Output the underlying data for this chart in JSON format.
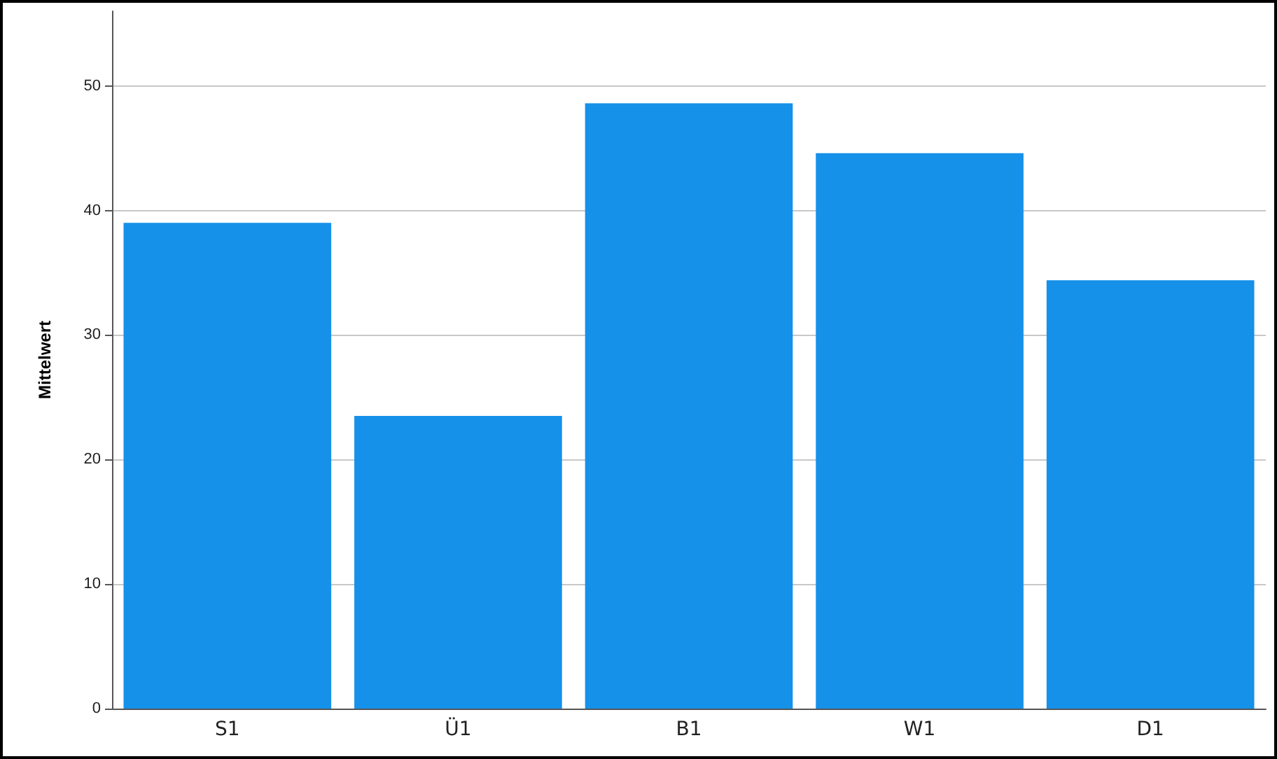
{
  "chart_data": {
    "type": "bar",
    "ylabel": "Mittelwert",
    "categories": [
      "S1",
      "Ü1",
      "B1",
      "W1",
      "D1"
    ],
    "values": [
      39,
      23.5,
      48.6,
      44.6,
      34.4
    ],
    "color": "#1591ea",
    "ylim": [
      0,
      56
    ],
    "yticks": [
      0,
      10,
      20,
      30,
      40,
      50
    ],
    "grid": "y"
  }
}
